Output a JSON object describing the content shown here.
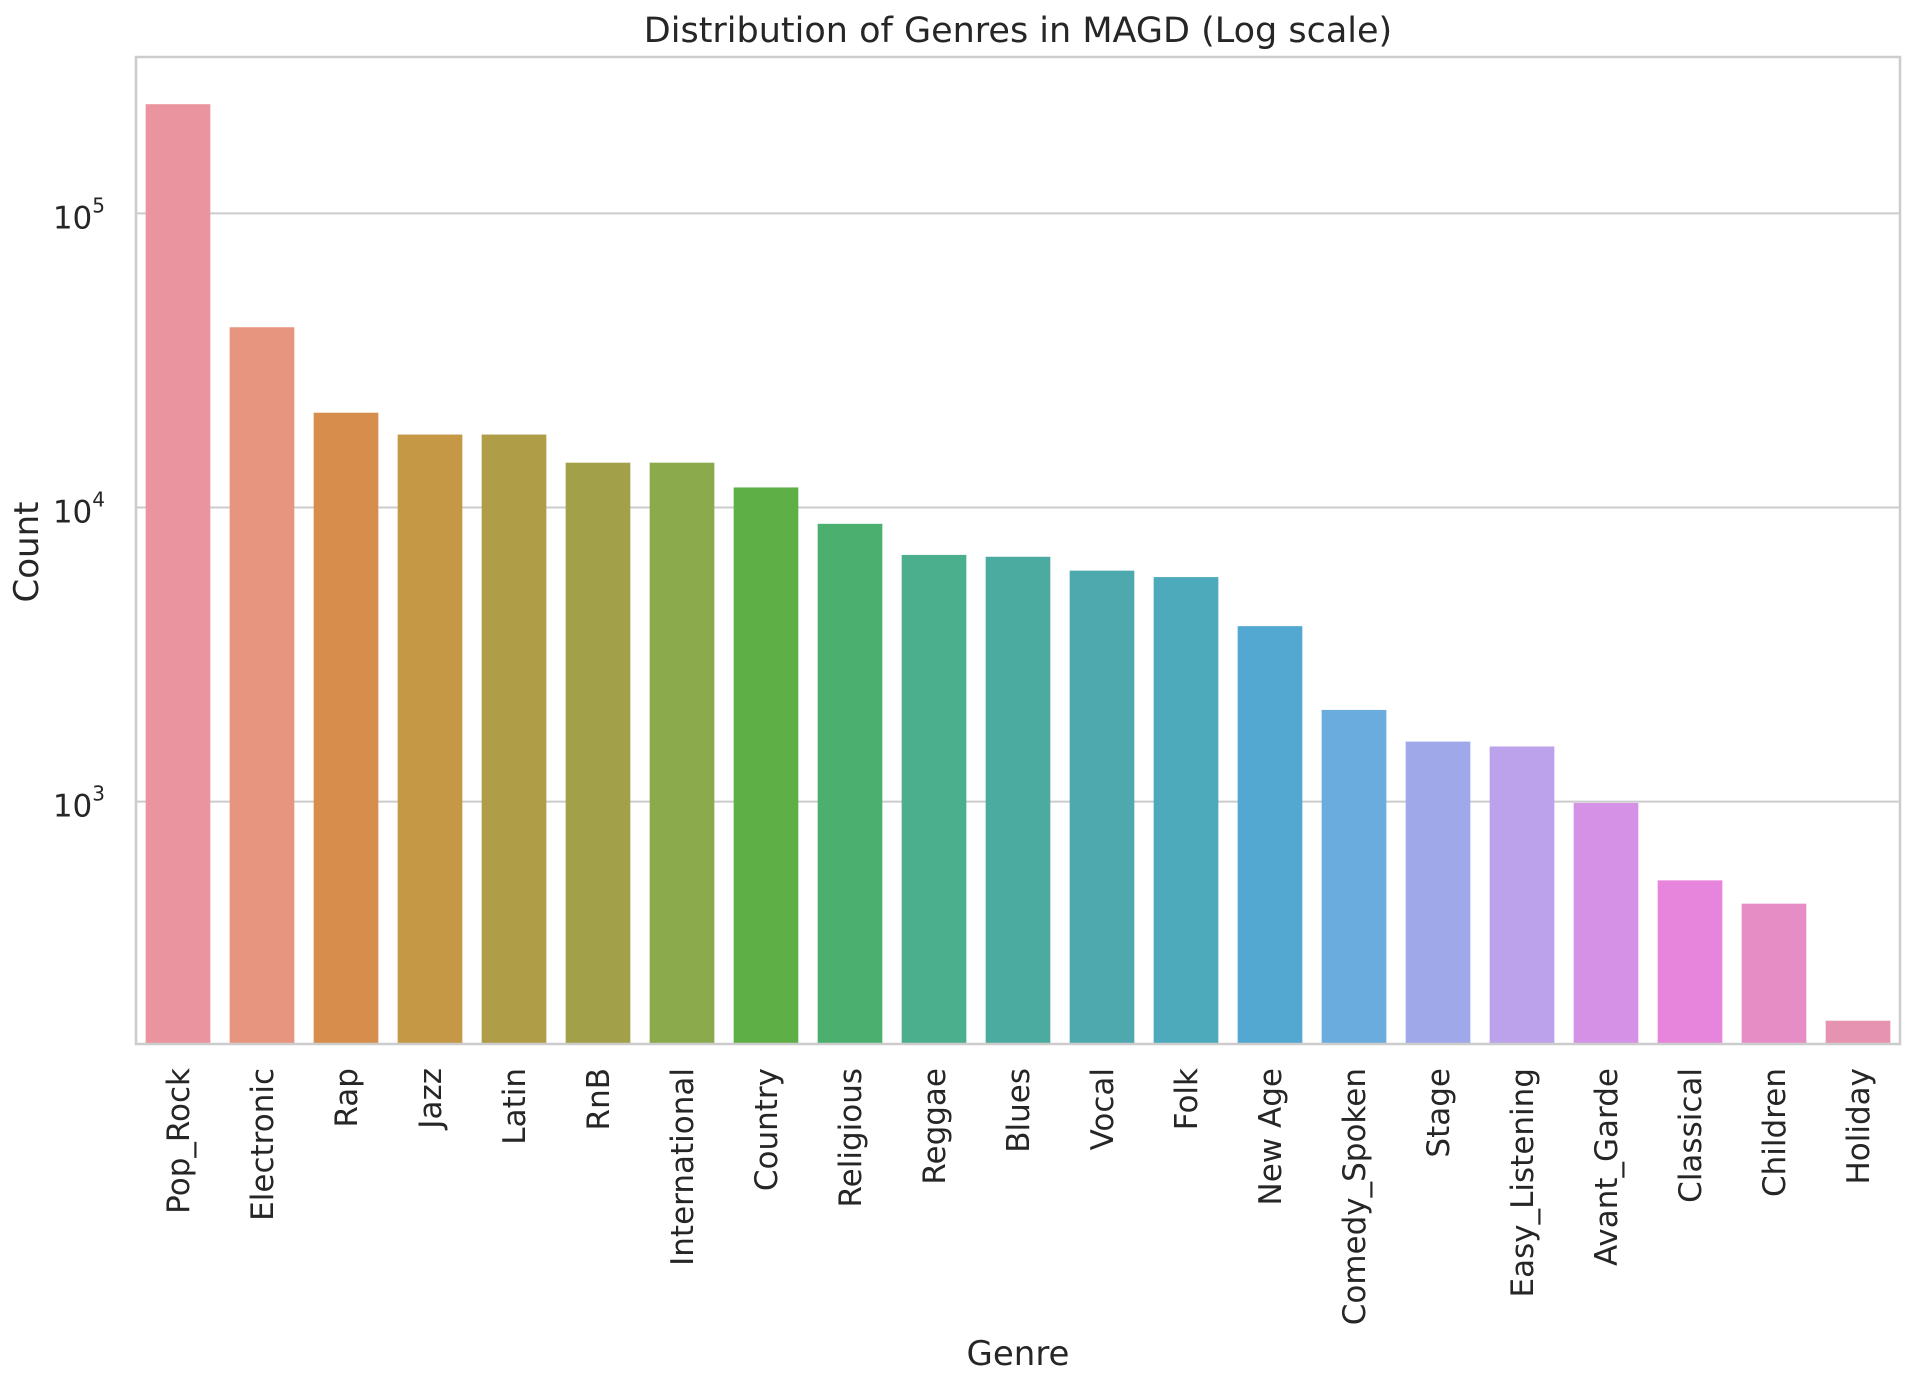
{
  "chart_data": {
    "type": "bar",
    "title": "Distribution of Genres in MAGD (Log scale)",
    "xlabel": "Genre",
    "ylabel": "Count",
    "yscale": "log",
    "ylim": [
      150,
      340000
    ],
    "yticks": [
      {
        "value": 1000,
        "base": "10",
        "exp": "3"
      },
      {
        "value": 10000,
        "base": "10",
        "exp": "4"
      },
      {
        "value": 100000,
        "base": "10",
        "exp": "5"
      }
    ],
    "grid": "horizontal",
    "categories": [
      "Pop_Rock",
      "Electronic",
      "Rap",
      "Jazz",
      "Latin",
      "RnB",
      "International",
      "Country",
      "Religious",
      "Reggae",
      "Blues",
      "Vocal",
      "Folk",
      "New Age",
      "Comedy_Spoken",
      "Stage",
      "Easy_Listening",
      "Avant_Garde",
      "Classical",
      "Children",
      "Holiday"
    ],
    "values": [
      235000,
      41000,
      21000,
      17700,
      17700,
      14200,
      14200,
      11700,
      8800,
      6900,
      6800,
      6100,
      5800,
      3950,
      2050,
      1600,
      1540,
      990,
      540,
      450,
      180
    ],
    "colors": [
      "#e9949e",
      "#e89580",
      "#d78e4c",
      "#c59846",
      "#af9d47",
      "#a2a14a",
      "#8aaa4b",
      "#5faf47",
      "#4aaf6f",
      "#4bae8d",
      "#4caba0",
      "#4da9ae",
      "#4daabb",
      "#52a8d1",
      "#6bacdf",
      "#9fa8e8",
      "#bca2ea",
      "#d491e5",
      "#e785dc",
      "#e68dc6",
      "#e693b1"
    ]
  }
}
